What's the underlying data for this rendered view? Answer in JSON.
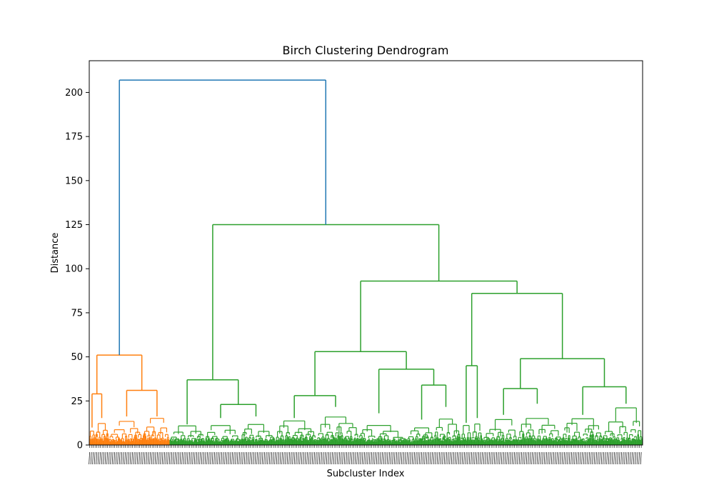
{
  "chart_data": {
    "type": "dendrogram",
    "title": "Birch Clustering Dendrogram",
    "xlabel": "Subcluster Index",
    "ylabel": "Distance",
    "ylim": [
      0,
      218
    ],
    "yticks": [
      0,
      25,
      50,
      75,
      100,
      125,
      150,
      175,
      200
    ],
    "n_leaves": 620,
    "colors": {
      "root": "#1f77b4",
      "cluster_1": "#ff7f0e",
      "cluster_2": "#2ca02c"
    },
    "links": [
      {
        "name": "root",
        "left": [
          0,
          90
        ],
        "right": [
          90,
          620
        ],
        "height": 207,
        "color": "root"
      },
      {
        "name": "orange-top",
        "left": [
          0,
          22
        ],
        "right": [
          22,
          90
        ],
        "height": 51,
        "color": "cluster_1"
      },
      {
        "name": "orange-left",
        "left": [
          0,
          7
        ],
        "right": [
          7,
          22
        ],
        "height": 29,
        "color": "cluster_1"
      },
      {
        "name": "orange-right",
        "left": [
          22,
          60
        ],
        "right": [
          60,
          90
        ],
        "height": 31,
        "color": "cluster_1"
      },
      {
        "name": "green-top",
        "left": [
          90,
          208
        ],
        "right": [
          208,
          620
        ],
        "height": 125,
        "color": "cluster_2"
      },
      {
        "name": "green-left",
        "left": [
          90,
          130
        ],
        "right": [
          130,
          208
        ],
        "height": 37,
        "color": "cluster_2"
      },
      {
        "name": "green-left-inner",
        "left": [
          130,
          170
        ],
        "right": [
          170,
          208
        ],
        "height": 23,
        "color": "cluster_2"
      },
      {
        "name": "green-mid",
        "left": [
          208,
          416
        ],
        "right": [
          416,
          620
        ],
        "height": 93,
        "color": "cluster_2"
      },
      {
        "name": "green-mid-left",
        "left": [
          208,
          302
        ],
        "right": [
          302,
          416
        ],
        "height": 53,
        "color": "cluster_2"
      },
      {
        "name": "green-mid-left-a",
        "left": [
          208,
          255
        ],
        "right": [
          255,
          302
        ],
        "height": 28,
        "color": "cluster_2"
      },
      {
        "name": "green-mid-left-b",
        "left": [
          302,
          356
        ],
        "right": [
          356,
          416
        ],
        "height": 43,
        "color": "cluster_2"
      },
      {
        "name": "green-mid-left-b2",
        "left": [
          356,
          386
        ],
        "right": [
          386,
          416
        ],
        "height": 34,
        "color": "cluster_2"
      },
      {
        "name": "green-right",
        "left": [
          416,
          440
        ],
        "right": [
          440,
          620
        ],
        "height": 86,
        "color": "cluster_2"
      },
      {
        "name": "green-right-a",
        "left": [
          416,
          428
        ],
        "right": [
          428,
          440
        ],
        "height": 45,
        "color": "cluster_2"
      },
      {
        "name": "green-right-b",
        "left": [
          440,
          530
        ],
        "right": [
          530,
          620
        ],
        "height": 49,
        "color": "cluster_2"
      },
      {
        "name": "green-right-b1",
        "left": [
          440,
          480
        ],
        "right": [
          480,
          530
        ],
        "height": 32,
        "color": "cluster_2"
      },
      {
        "name": "green-right-b2",
        "left": [
          530,
          575
        ],
        "right": [
          575,
          620
        ],
        "height": 33,
        "color": "cluster_2"
      }
    ]
  }
}
